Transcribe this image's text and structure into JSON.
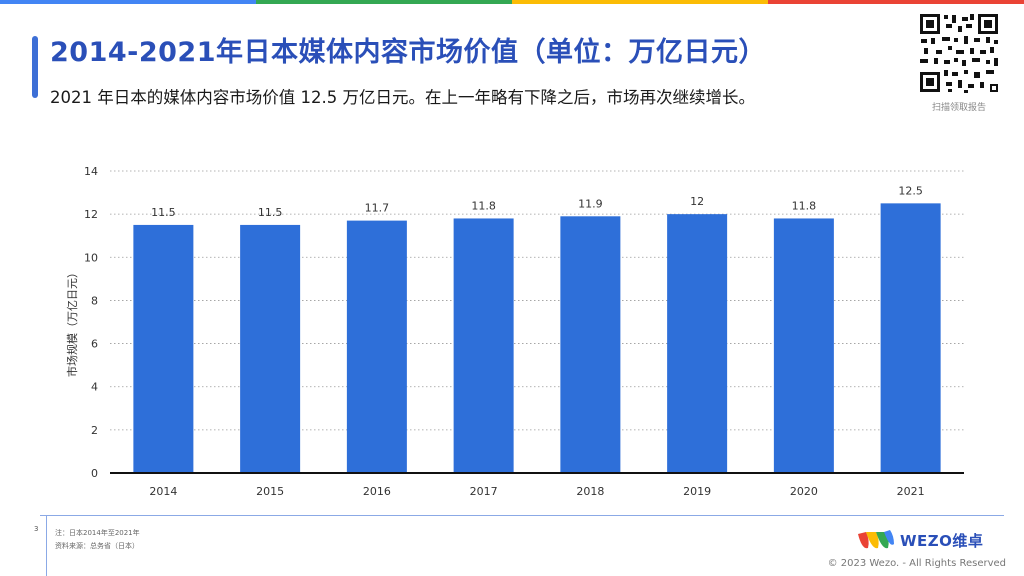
{
  "header": {
    "title": "2014-2021年日本媒体内容市场价值（单位：万亿日元）",
    "subtitle": "2021 年日本的媒体内容市场价值 12.5 万亿日元。在上一年略有下降之后，市场再次继续增长。"
  },
  "qr": {
    "caption": "扫描领取报告"
  },
  "colors": {
    "bar": "#2e6fd9",
    "title": "#2a4fb8",
    "top_bar": [
      "#4285f4",
      "#34a853",
      "#fbbc05",
      "#ea4335"
    ]
  },
  "chart_data": {
    "type": "bar",
    "categories": [
      "2014",
      "2015",
      "2016",
      "2017",
      "2018",
      "2019",
      "2020",
      "2021"
    ],
    "values": [
      11.5,
      11.5,
      11.7,
      11.8,
      11.9,
      12,
      11.8,
      12.5
    ],
    "value_labels": [
      "11.5",
      "11.5",
      "11.7",
      "11.8",
      "11.9",
      "12",
      "11.8",
      "12.5"
    ],
    "ylabel": "市场规模（万亿日元）",
    "ylim": [
      0,
      14
    ],
    "yticks": [
      0,
      2,
      4,
      6,
      8,
      10,
      12,
      14
    ],
    "grid": true,
    "legend": "none"
  },
  "footer": {
    "page_number": "3",
    "note": "注：日本2014年至2021年",
    "source": "资料来源：总务省（日本）",
    "logo_text": "WEZO维卓",
    "copyright": "© 2023 Wezo. - All Rights Reserved"
  }
}
